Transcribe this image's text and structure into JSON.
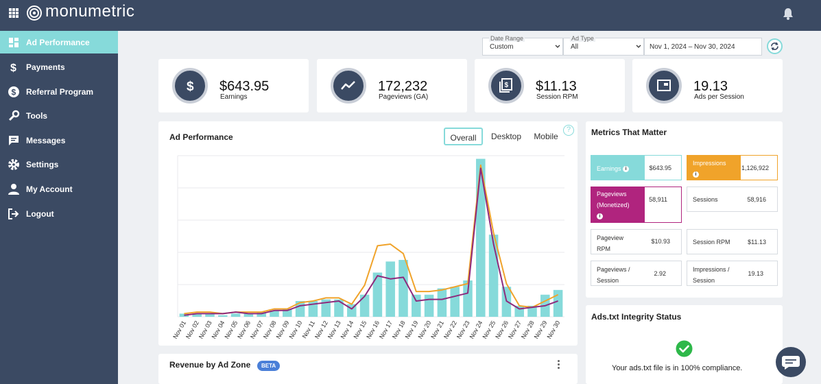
{
  "brand": {
    "name": "monumetric"
  },
  "sidebar": {
    "items": [
      {
        "label": "Ad Performance",
        "icon": "dashboard-icon",
        "active": true
      },
      {
        "label": "Payments",
        "icon": "dollar-icon"
      },
      {
        "label": "Referral Program",
        "icon": "referral-dollar-icon"
      },
      {
        "label": "Tools",
        "icon": "wrench-icon"
      },
      {
        "label": "Messages",
        "icon": "message-icon"
      },
      {
        "label": "Settings",
        "icon": "gear-icon"
      },
      {
        "label": "My Account",
        "icon": "user-icon"
      },
      {
        "label": "Logout",
        "icon": "logout-icon"
      }
    ]
  },
  "filters": {
    "date_range_label": "Date Range",
    "date_range_value": "Custom",
    "ad_type_label": "Ad Type",
    "ad_type_value": "All",
    "date_text": "Nov 1, 2024 – Nov 30, 2024"
  },
  "kpis": [
    {
      "value": "$643.95",
      "label": "Earnings",
      "icon": "dollar-icon"
    },
    {
      "value": "172,232",
      "label": "Pageviews (GA)",
      "icon": "trend-icon"
    },
    {
      "value": "$11.13",
      "label": "Session RPM",
      "icon": "money-stack-icon"
    },
    {
      "value": "19.13",
      "label": "Ads per Session",
      "icon": "ad-window-icon"
    }
  ],
  "ad_performance": {
    "title": "Ad Performance",
    "tabs": [
      "Overall",
      "Desktop",
      "Mobile"
    ],
    "active_tab": "Overall"
  },
  "metrics": {
    "title": "Metrics That Matter",
    "tiles": [
      {
        "label": "Earnings",
        "value": "$643.95",
        "color": "#86dada"
      },
      {
        "label": "Impressions",
        "value": "1,126,922",
        "color": "#f0a32a"
      },
      {
        "label": "Pageviews (Monetized)",
        "value": "58,911",
        "color": "#b0247e"
      },
      {
        "label": "Sessions",
        "value": "58,916"
      },
      {
        "label": "Pageview RPM",
        "value": "$10.93"
      },
      {
        "label": "Session RPM",
        "value": "$11.13"
      },
      {
        "label": "Pageviews / Session",
        "value": "2.92"
      },
      {
        "label": "Impressions / Session",
        "value": "19.13"
      }
    ]
  },
  "ads_txt": {
    "title": "Ads.txt Integrity Status",
    "message": "Your ads.txt file is in 100% compliance."
  },
  "revenue": {
    "title": "Revenue by Ad Zone",
    "badge": "BETA"
  },
  "chart_data": {
    "type": "bar",
    "categories": [
      "Nov 01",
      "Nov 02",
      "Nov 03",
      "Nov 04",
      "Nov 05",
      "Nov 06",
      "Nov 07",
      "Nov 08",
      "Nov 09",
      "Nov 10",
      "Nov 11",
      "Nov 12",
      "Nov 13",
      "Nov 14",
      "Nov 15",
      "Nov 16",
      "Nov 17",
      "Nov 18",
      "Nov 19",
      "Nov 20",
      "Nov 21",
      "Nov 22",
      "Nov 23",
      "Nov 24",
      "Nov 25",
      "Nov 26",
      "Nov 27",
      "Nov 28",
      "Nov 29",
      "Nov 30"
    ],
    "series": [
      {
        "type": "bar",
        "color": "#86dada",
        "values": [
          0.02,
          0.02,
          0.02,
          0.01,
          0.02,
          0.02,
          0.03,
          0.04,
          0.05,
          0.1,
          0.1,
          0.11,
          0.11,
          0.08,
          0.14,
          0.28,
          0.35,
          0.36,
          0.14,
          0.14,
          0.18,
          0.19,
          0.23,
          1.0,
          0.52,
          0.19,
          0.07,
          0.07,
          0.14,
          0.17
        ]
      },
      {
        "type": "line",
        "color": "#f0a32a",
        "values": [
          0.02,
          0.03,
          0.03,
          0.02,
          0.03,
          0.03,
          0.03,
          0.05,
          0.05,
          0.09,
          0.1,
          0.12,
          0.12,
          0.08,
          0.2,
          0.45,
          0.46,
          0.4,
          0.16,
          0.16,
          0.17,
          0.19,
          0.21,
          0.96,
          0.53,
          0.21,
          0.07,
          0.06,
          0.1,
          0.14
        ]
      },
      {
        "type": "line",
        "color": "#8e2a7c",
        "values": [
          0.01,
          0.02,
          0.02,
          0.02,
          0.03,
          0.02,
          0.02,
          0.04,
          0.04,
          0.07,
          0.08,
          0.09,
          0.1,
          0.05,
          0.13,
          0.26,
          0.24,
          0.25,
          0.1,
          0.11,
          0.11,
          0.13,
          0.15,
          0.94,
          0.46,
          0.1,
          0.05,
          0.06,
          0.07,
          0.1
        ]
      }
    ],
    "xlabel": "",
    "ylabel": "",
    "ylim": [
      0,
      1.02
    ],
    "grid": true
  }
}
